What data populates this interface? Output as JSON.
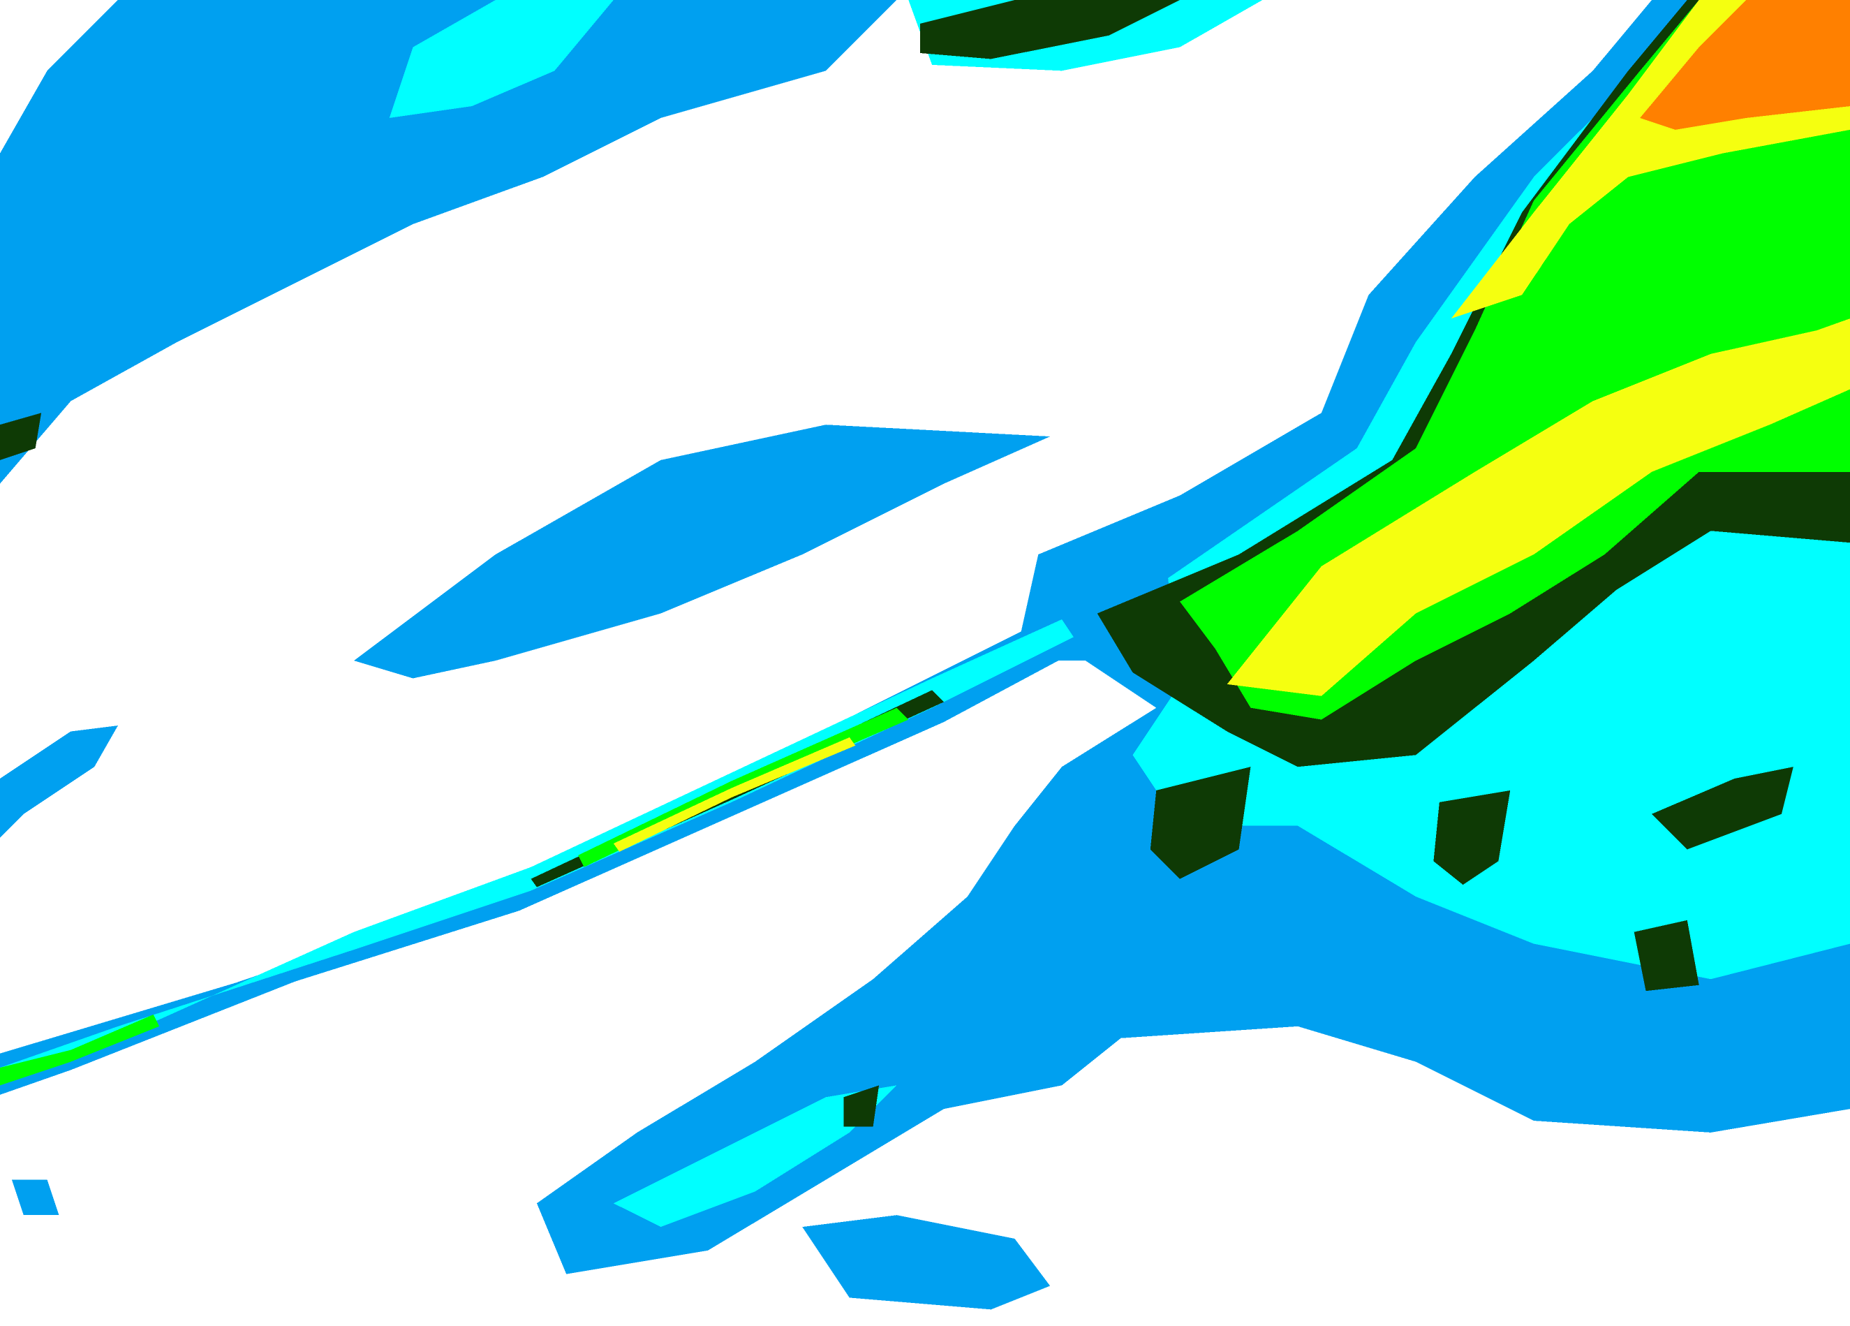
{
  "map": {
    "palette": {
      "background": "#ffffff",
      "level_1": "#00a0f0",
      "level_2": "#00ffff",
      "level_3": "#0e3a05",
      "level_4": "#00ff00",
      "level_5": "#f5ff10",
      "level_6": "#ff8000"
    }
  }
}
